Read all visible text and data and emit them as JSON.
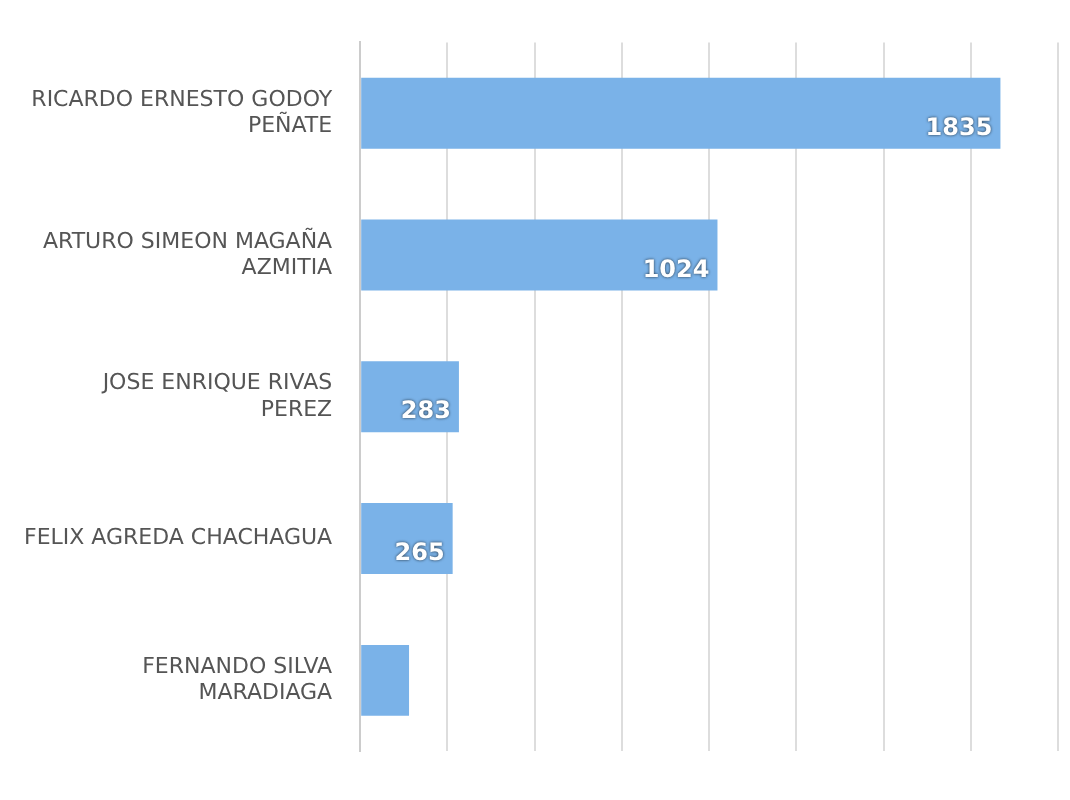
{
  "chart_data": {
    "type": "bar",
    "orientation": "horizontal",
    "categories": [
      "RICARDO ERNESTO GODOY PEÑATE",
      "ARTURO SIMEON MAGAÑA AZMITIA",
      "JOSE ENRIQUE RIVAS PEREZ",
      "FELIX AGREDA CHACHAGUA",
      "FERNANDO SILVA MARADIAGA"
    ],
    "values": [
      1835,
      1024,
      283,
      265,
      140
    ],
    "value_labels": [
      "1835",
      "1024",
      "283",
      "265",
      null
    ],
    "color": "#7ab2e8",
    "xlim": [
      0,
      2000
    ],
    "xticks": [
      {
        "value": 0,
        "label": null
      },
      {
        "value": 250,
        "label": null
      },
      {
        "value": 500,
        "label": null
      },
      {
        "value": 750,
        "label": null
      },
      {
        "value": 1000,
        "label": null
      },
      {
        "value": 1250,
        "label": null
      },
      {
        "value": 1500,
        "label": null
      },
      {
        "value": 1750,
        "label": null
      },
      {
        "value": 2000,
        "label": null
      }
    ],
    "grid": "x",
    "legend": false
  }
}
